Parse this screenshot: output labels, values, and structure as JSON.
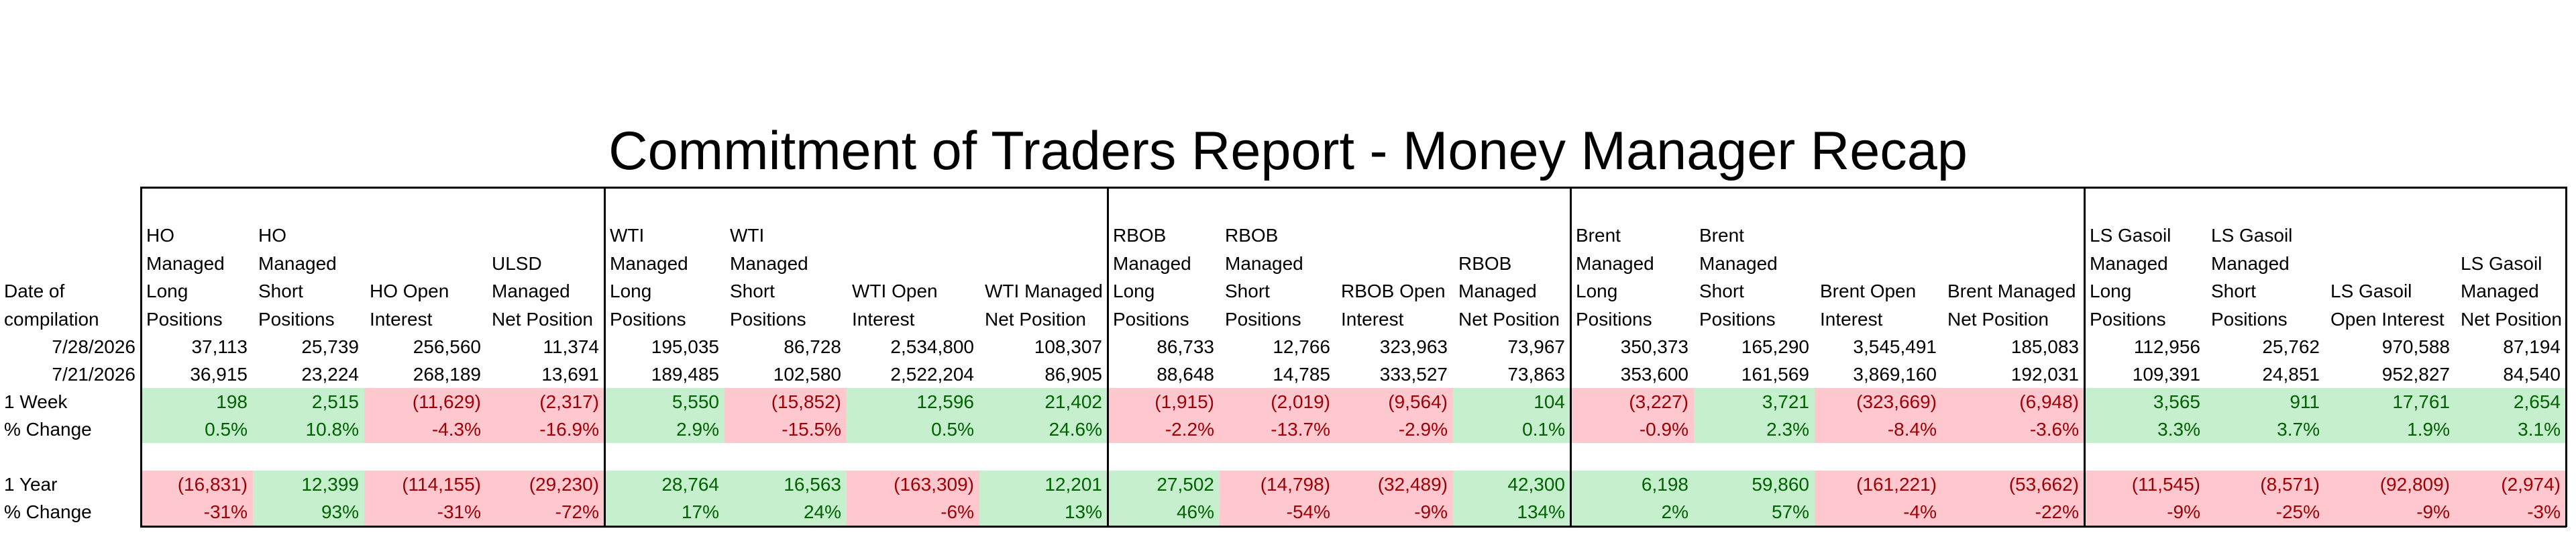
{
  "title": "Commitment of Traders Report - Money Manager Recap",
  "colors": {
    "positive_fill": "#c6efce",
    "positive_text": "#006100",
    "negative_fill": "#ffc7ce",
    "negative_text": "#9c0006",
    "border": "#000000"
  },
  "date_header": "Date of compilation",
  "headers": [
    "HO Managed Long Positions",
    "HO Managed Short Positions",
    "HO Open Interest",
    "ULSD Managed Net Position",
    "WTI Managed Long Positions",
    "WTI Managed Short Positions",
    "WTI Open Interest",
    "WTI Managed Net Position",
    "RBOB Managed Long Positions",
    "RBOB Managed Short Positions",
    "RBOB Open Interest",
    "RBOB Managed Net Position",
    "Brent Managed Long Positions",
    "Brent Managed Short Positions",
    "Brent Open Interest",
    "Brent Managed Net Position",
    "LS Gasoil Managed Long Positions",
    "LS Gasoil Managed Short Positions",
    "LS Gasoil Open Interest",
    "LS Gasoil Managed Net Position"
  ],
  "rows": [
    {
      "label": "7/28/2026",
      "kind": "date",
      "values": [
        "37,113",
        "25,739",
        "256,560",
        "11,374",
        "195,035",
        "86,728",
        "2,534,800",
        "108,307",
        "86,733",
        "12,766",
        "323,963",
        "73,967",
        "350,373",
        "165,290",
        "3,545,491",
        "185,083",
        "112,956",
        "25,762",
        "970,588",
        "87,194"
      ],
      "signs": []
    },
    {
      "label": "7/21/2026",
      "kind": "date",
      "values": [
        "36,915",
        "23,224",
        "268,189",
        "13,691",
        "189,485",
        "102,580",
        "2,522,204",
        "86,905",
        "88,648",
        "14,785",
        "333,527",
        "73,863",
        "353,600",
        "161,569",
        "3,869,160",
        "192,031",
        "109,391",
        "24,851",
        "952,827",
        "84,540"
      ],
      "signs": []
    },
    {
      "label": "1 Week",
      "kind": "metric",
      "values": [
        "198",
        "2,515",
        "(11,629)",
        "(2,317)",
        "5,550",
        "(15,852)",
        "12,596",
        "21,402",
        "(1,915)",
        "(2,019)",
        "(9,564)",
        "104",
        "(3,227)",
        "3,721",
        "(323,669)",
        "(6,948)",
        "3,565",
        "911",
        "17,761",
        "2,654"
      ],
      "signs": [
        "pos",
        "pos",
        "neg",
        "neg",
        "pos",
        "neg",
        "pos",
        "pos",
        "neg",
        "neg",
        "neg",
        "pos",
        "neg",
        "pos",
        "neg",
        "neg",
        "pos",
        "pos",
        "pos",
        "pos"
      ]
    },
    {
      "label": "% Change",
      "kind": "metric",
      "values": [
        "0.5%",
        "10.8%",
        "-4.3%",
        "-16.9%",
        "2.9%",
        "-15.5%",
        "0.5%",
        "24.6%",
        "-2.2%",
        "-13.7%",
        "-2.9%",
        "0.1%",
        "-0.9%",
        "2.3%",
        "-8.4%",
        "-3.6%",
        "3.3%",
        "3.7%",
        "1.9%",
        "3.1%"
      ],
      "signs": [
        "pos",
        "pos",
        "neg",
        "neg",
        "pos",
        "neg",
        "pos",
        "pos",
        "neg",
        "neg",
        "neg",
        "pos",
        "neg",
        "pos",
        "neg",
        "neg",
        "pos",
        "pos",
        "pos",
        "pos"
      ]
    },
    {
      "label": "",
      "kind": "spacer",
      "values": [],
      "signs": []
    },
    {
      "label": "1 Year",
      "kind": "metric",
      "values": [
        "(16,831)",
        "12,399",
        "(114,155)",
        "(29,230)",
        "28,764",
        "16,563",
        "(163,309)",
        "12,201",
        "27,502",
        "(14,798)",
        "(32,489)",
        "42,300",
        "6,198",
        "59,860",
        "(161,221)",
        "(53,662)",
        "(11,545)",
        "(8,571)",
        "(92,809)",
        "(2,974)"
      ],
      "signs": [
        "neg",
        "pos",
        "neg",
        "neg",
        "pos",
        "pos",
        "neg",
        "pos",
        "pos",
        "neg",
        "neg",
        "pos",
        "pos",
        "pos",
        "neg",
        "neg",
        "neg",
        "neg",
        "neg",
        "neg"
      ]
    },
    {
      "label": "% Change",
      "kind": "metric",
      "values": [
        "-31%",
        "93%",
        "-31%",
        "-72%",
        "17%",
        "24%",
        "-6%",
        "13%",
        "46%",
        "-54%",
        "-9%",
        "134%",
        "2%",
        "57%",
        "-4%",
        "-22%",
        "-9%",
        "-25%",
        "-9%",
        "-3%"
      ],
      "signs": [
        "neg",
        "pos",
        "neg",
        "neg",
        "pos",
        "pos",
        "neg",
        "pos",
        "pos",
        "neg",
        "neg",
        "pos",
        "pos",
        "pos",
        "neg",
        "neg",
        "neg",
        "neg",
        "neg",
        "neg"
      ]
    }
  ]
}
